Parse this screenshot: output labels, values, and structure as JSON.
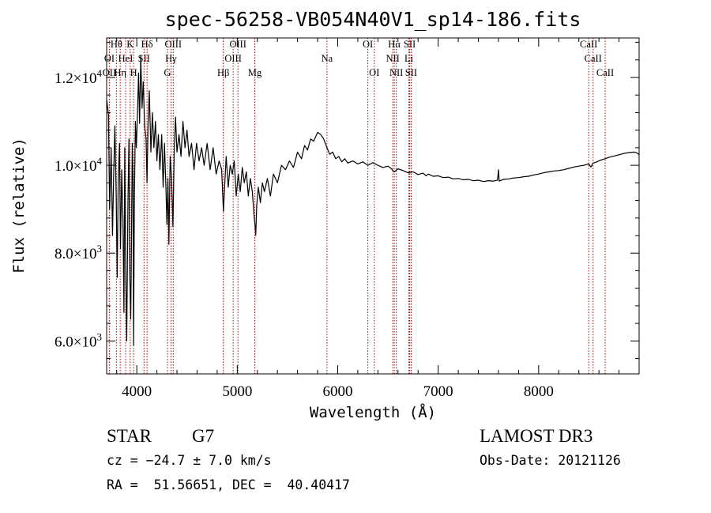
{
  "chart_data": {
    "type": "line",
    "title": "spec-56258-VB054N40V1_sp14-186.fits",
    "xlabel": "Wavelength (Å)",
    "ylabel": "Flux (relative)",
    "xlim": [
      3700,
      9000
    ],
    "ylim": [
      5250,
      12900
    ],
    "x_ticks": [
      {
        "value": 4000,
        "label": "4000"
      },
      {
        "value": 5000,
        "label": "5000"
      },
      {
        "value": 6000,
        "label": "6000"
      },
      {
        "value": 7000,
        "label": "7000"
      },
      {
        "value": 8000,
        "label": "8000"
      }
    ],
    "x_minor_step": 200,
    "y_ticks": [
      {
        "value": 6000,
        "mant": "6.0",
        "exp": "3"
      },
      {
        "value": 8000,
        "mant": "8.0",
        "exp": "3"
      },
      {
        "value": 10000,
        "mant": "1.0",
        "exp": "4"
      },
      {
        "value": 12000,
        "mant": "1.2",
        "exp": "4"
      }
    ],
    "y_minor_step": 400,
    "tick_times": "×10",
    "grid": false,
    "line_color": "#000000",
    "marker_color": "#c00000",
    "series": [
      {
        "name": "flux",
        "points": [
          [
            3700,
            11500
          ],
          [
            3718,
            11150
          ],
          [
            3730,
            9000
          ],
          [
            3745,
            10400
          ],
          [
            3758,
            8400
          ],
          [
            3770,
            9800
          ],
          [
            3782,
            10900
          ],
          [
            3795,
            9300
          ],
          [
            3805,
            7450
          ],
          [
            3815,
            9650
          ],
          [
            3828,
            10500
          ],
          [
            3838,
            8100
          ],
          [
            3850,
            9900
          ],
          [
            3862,
            8800
          ],
          [
            3872,
            6650
          ],
          [
            3880,
            10400
          ],
          [
            3888,
            8000
          ],
          [
            3900,
            6000
          ],
          [
            3912,
            9200
          ],
          [
            3922,
            10600
          ],
          [
            3930,
            7600
          ],
          [
            3940,
            6500
          ],
          [
            3948,
            8400
          ],
          [
            3955,
            10500
          ],
          [
            3962,
            9700
          ],
          [
            3968,
            5900
          ],
          [
            3976,
            9200
          ],
          [
            3986,
            11000
          ],
          [
            3996,
            10400
          ],
          [
            4008,
            11300
          ],
          [
            4018,
            12100
          ],
          [
            4028,
            10950
          ],
          [
            4040,
            12500
          ],
          [
            4052,
            11300
          ],
          [
            4064,
            11900
          ],
          [
            4078,
            10900
          ],
          [
            4092,
            10600
          ],
          [
            4102,
            9600
          ],
          [
            4112,
            10900
          ],
          [
            4125,
            11700
          ],
          [
            4140,
            10300
          ],
          [
            4155,
            11200
          ],
          [
            4170,
            10400
          ],
          [
            4186,
            11000
          ],
          [
            4200,
            10100
          ],
          [
            4215,
            10700
          ],
          [
            4230,
            9900
          ],
          [
            4248,
            10700
          ],
          [
            4262,
            9500
          ],
          [
            4276,
            10500
          ],
          [
            4290,
            9500
          ],
          [
            4300,
            8650
          ],
          [
            4310,
            9700
          ],
          [
            4320,
            8200
          ],
          [
            4332,
            10200
          ],
          [
            4346,
            9700
          ],
          [
            4360,
            8600
          ],
          [
            4372,
            10300
          ],
          [
            4386,
            11100
          ],
          [
            4400,
            10300
          ],
          [
            4420,
            10700
          ],
          [
            4440,
            10200
          ],
          [
            4460,
            11000
          ],
          [
            4480,
            10400
          ],
          [
            4500,
            10800
          ],
          [
            4520,
            10200
          ],
          [
            4545,
            10500
          ],
          [
            4570,
            9900
          ],
          [
            4595,
            10500
          ],
          [
            4620,
            10100
          ],
          [
            4645,
            10400
          ],
          [
            4670,
            10000
          ],
          [
            4700,
            10500
          ],
          [
            4730,
            9900
          ],
          [
            4760,
            10400
          ],
          [
            4790,
            9800
          ],
          [
            4820,
            10100
          ],
          [
            4845,
            9900
          ],
          [
            4862,
            8950
          ],
          [
            4876,
            9600
          ],
          [
            4890,
            10200
          ],
          [
            4910,
            9500
          ],
          [
            4930,
            10000
          ],
          [
            4950,
            9800
          ],
          [
            4970,
            10100
          ],
          [
            4990,
            9300
          ],
          [
            5010,
            9800
          ],
          [
            5030,
            9400
          ],
          [
            5050,
            9950
          ],
          [
            5070,
            9600
          ],
          [
            5090,
            9850
          ],
          [
            5110,
            9300
          ],
          [
            5130,
            9700
          ],
          [
            5150,
            9400
          ],
          [
            5167,
            8850
          ],
          [
            5178,
            8600
          ],
          [
            5184,
            8400
          ],
          [
            5194,
            9100
          ],
          [
            5210,
            9500
          ],
          [
            5230,
            9150
          ],
          [
            5250,
            9600
          ],
          [
            5270,
            9400
          ],
          [
            5300,
            9700
          ],
          [
            5330,
            9300
          ],
          [
            5360,
            9800
          ],
          [
            5400,
            9600
          ],
          [
            5440,
            10000
          ],
          [
            5480,
            9900
          ],
          [
            5520,
            10100
          ],
          [
            5560,
            9950
          ],
          [
            5600,
            10300
          ],
          [
            5640,
            10150
          ],
          [
            5670,
            10450
          ],
          [
            5700,
            10350
          ],
          [
            5730,
            10600
          ],
          [
            5760,
            10550
          ],
          [
            5800,
            10750
          ],
          [
            5830,
            10700
          ],
          [
            5860,
            10600
          ],
          [
            5893,
            10400
          ],
          [
            5920,
            10250
          ],
          [
            5950,
            10300
          ],
          [
            5980,
            10150
          ],
          [
            6010,
            10200
          ],
          [
            6040,
            10080
          ],
          [
            6070,
            10150
          ],
          [
            6100,
            10050
          ],
          [
            6150,
            10100
          ],
          [
            6200,
            10030
          ],
          [
            6250,
            10080
          ],
          [
            6300,
            10000
          ],
          [
            6350,
            10060
          ],
          [
            6400,
            10000
          ],
          [
            6450,
            9950
          ],
          [
            6500,
            9980
          ],
          [
            6530,
            9930
          ],
          [
            6563,
            9850
          ],
          [
            6600,
            9920
          ],
          [
            6650,
            9880
          ],
          [
            6700,
            9830
          ],
          [
            6750,
            9850
          ],
          [
            6800,
            9790
          ],
          [
            6850,
            9820
          ],
          [
            6880,
            9760
          ],
          [
            6900,
            9800
          ],
          [
            6950,
            9750
          ],
          [
            7000,
            9760
          ],
          [
            7050,
            9720
          ],
          [
            7100,
            9730
          ],
          [
            7150,
            9690
          ],
          [
            7200,
            9700
          ],
          [
            7250,
            9670
          ],
          [
            7300,
            9680
          ],
          [
            7350,
            9650
          ],
          [
            7400,
            9660
          ],
          [
            7450,
            9630
          ],
          [
            7500,
            9650
          ],
          [
            7550,
            9640
          ],
          [
            7590,
            9660
          ],
          [
            7600,
            9900
          ],
          [
            7607,
            9640
          ],
          [
            7650,
            9680
          ],
          [
            7700,
            9690
          ],
          [
            7750,
            9710
          ],
          [
            7800,
            9720
          ],
          [
            7850,
            9740
          ],
          [
            7900,
            9750
          ],
          [
            7950,
            9780
          ],
          [
            8000,
            9800
          ],
          [
            8050,
            9830
          ],
          [
            8100,
            9850
          ],
          [
            8150,
            9870
          ],
          [
            8200,
            9880
          ],
          [
            8250,
            9900
          ],
          [
            8300,
            9930
          ],
          [
            8350,
            9960
          ],
          [
            8400,
            9980
          ],
          [
            8450,
            10000
          ],
          [
            8498,
            10030
          ],
          [
            8520,
            9960
          ],
          [
            8542,
            10050
          ],
          [
            8580,
            10080
          ],
          [
            8620,
            10120
          ],
          [
            8662,
            10150
          ],
          [
            8700,
            10180
          ],
          [
            8750,
            10210
          ],
          [
            8800,
            10240
          ],
          [
            8850,
            10270
          ],
          [
            8900,
            10290
          ],
          [
            8950,
            10300
          ],
          [
            8980,
            10280
          ],
          [
            9000,
            10240
          ]
        ]
      }
    ],
    "line_markers": [
      {
        "label": "Hθ",
        "lambda": 3797,
        "row": 0
      },
      {
        "label": "K",
        "lambda": 3934,
        "row": 0
      },
      {
        "label": "Hδ",
        "lambda": 4102,
        "row": 0
      },
      {
        "label": "OIII",
        "lambda": 4363,
        "row": 0
      },
      {
        "label": "OIII",
        "lambda": 5007,
        "row": 0
      },
      {
        "label": "OI",
        "lambda": 6300,
        "row": 0
      },
      {
        "label": "Hα",
        "lambda": 6563,
        "row": 0
      },
      {
        "label": "SII",
        "lambda": 6716,
        "row": 0
      },
      {
        "label": "CaII",
        "lambda": 8498,
        "row": 0
      },
      {
        "label": "OI",
        "lambda": 3727,
        "row": 1
      },
      {
        "label": "HeI",
        "lambda": 3889,
        "row": 1
      },
      {
        "label": "SII",
        "lambda": 4072,
        "row": 1
      },
      {
        "label": "Hγ",
        "lambda": 4340,
        "row": 1
      },
      {
        "label": "OIII",
        "lambda": 4959,
        "row": 1
      },
      {
        "label": "Na",
        "lambda": 5893,
        "row": 1
      },
      {
        "label": "NII",
        "lambda": 6548,
        "row": 1
      },
      {
        "label": "Li",
        "lambda": 6708,
        "row": 1
      },
      {
        "label": "CaII",
        "lambda": 8542,
        "row": 1
      },
      {
        "label": "OII",
        "lambda": 3727,
        "row": 2
      },
      {
        "label": "Hη",
        "lambda": 3835,
        "row": 2
      },
      {
        "label": "H",
        "lambda": 3968,
        "row": 2
      },
      {
        "label": "G",
        "lambda": 4305,
        "row": 2
      },
      {
        "label": "Hβ",
        "lambda": 4861,
        "row": 2
      },
      {
        "label": "Mg",
        "lambda": 5175,
        "row": 2
      },
      {
        "label": "OI",
        "lambda": 6364,
        "row": 2
      },
      {
        "label": "NII",
        "lambda": 6583,
        "row": 2
      },
      {
        "label": "SII",
        "lambda": 6731,
        "row": 2
      },
      {
        "label": "CaII",
        "lambda": 8662,
        "row": 2
      }
    ]
  },
  "info": {
    "object_class": "STAR",
    "subclass": "G7",
    "cz": "cz = −24.7 ± 7.0 km/s",
    "coords": "RA =  51.56651, DEC =  40.40417",
    "survey": "LAMOST DR3",
    "obs_date": "Obs-Date: 20121126"
  }
}
